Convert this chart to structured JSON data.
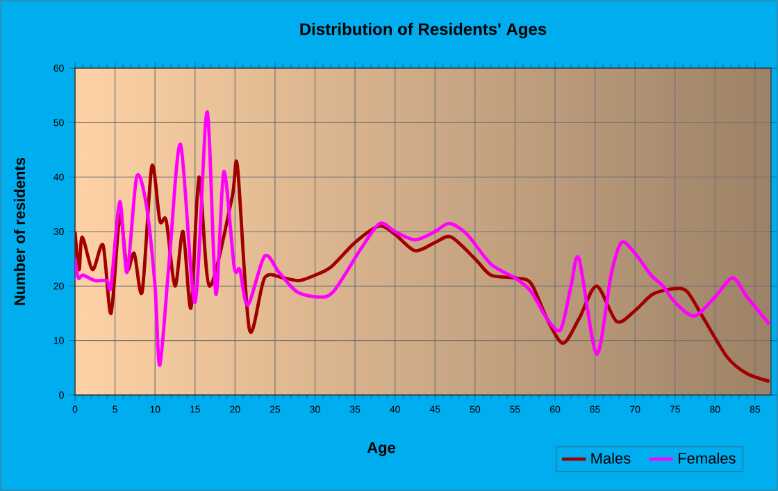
{
  "chart_data": {
    "type": "line",
    "title": "Distribution of Residents' Ages",
    "xlabel": "Age",
    "ylabel": "Number of residents",
    "xlim": [
      0,
      87
    ],
    "ylim": [
      0,
      60
    ],
    "xticks": [
      0,
      5,
      10,
      15,
      20,
      25,
      30,
      35,
      40,
      45,
      50,
      55,
      60,
      65,
      70,
      75,
      80,
      85
    ],
    "yticks": [
      0,
      10,
      20,
      30,
      40,
      50,
      60
    ],
    "grid": true,
    "legend": "bottom right",
    "marker": "none",
    "line_style": "solid",
    "series": [
      {
        "name": "Males",
        "color": "#a00000",
        "x": [
          0,
          0.5,
          0.9,
          2.2,
          3.5,
          4.5,
          5.6,
          6.5,
          7.4,
          8.4,
          9.6,
          10.6,
          11.4,
          12.5,
          13.5,
          14.5,
          15.5,
          16.8,
          19.6,
          20.3,
          21.8,
          23.7,
          26,
          28,
          30,
          32,
          35,
          38,
          40,
          42.5,
          45,
          47,
          50,
          52,
          55,
          57,
          59,
          61,
          63,
          65.2,
          67.7,
          70,
          72.2,
          74.8,
          76.5,
          78.6,
          81.5,
          83.9,
          86.8
        ],
        "values": [
          30,
          23,
          29,
          23,
          27.5,
          15,
          33,
          23,
          26,
          19,
          42,
          32,
          32,
          20,
          30,
          16,
          40,
          20,
          36,
          42,
          12,
          21.5,
          21.5,
          21,
          22,
          23.5,
          28,
          31,
          29.5,
          26.5,
          28,
          29,
          25,
          22,
          21.5,
          20.5,
          14,
          9.5,
          14,
          20,
          13.5,
          15.5,
          18.5,
          19.5,
          19,
          14,
          7,
          4,
          2.5
        ]
      },
      {
        "name": "Females",
        "color": "#ff00ff",
        "x": [
          0,
          0.4,
          1,
          2.5,
          4,
          4.5,
          5.6,
          6.5,
          7.7,
          8.9,
          10,
          10.6,
          11.8,
          13.2,
          15,
          16.5,
          17.6,
          18.6,
          19.9,
          20.6,
          21.6,
          23.7,
          25.5,
          27.7,
          30.3,
          32.3,
          35.8,
          38.1,
          40,
          42.5,
          45,
          46.8,
          49,
          52,
          55,
          57,
          59,
          60.7,
          62,
          63,
          65.2,
          67,
          68.3,
          70,
          72,
          73.5,
          75,
          77.4,
          80,
          82.2,
          84,
          86.8
        ],
        "values": [
          25,
          21.5,
          22,
          21,
          21,
          20,
          35.5,
          22.5,
          40,
          35,
          20,
          5.5,
          25,
          46,
          17,
          52,
          18.5,
          41,
          23.5,
          23,
          16.5,
          25.5,
          22.5,
          19,
          18,
          19,
          27,
          31.5,
          30,
          28.5,
          30,
          31.5,
          29.5,
          24,
          21.5,
          19,
          14,
          12,
          20,
          25,
          7.5,
          22,
          28,
          26,
          22,
          20,
          17,
          14.5,
          18,
          21.5,
          18,
          13
        ]
      }
    ]
  }
}
